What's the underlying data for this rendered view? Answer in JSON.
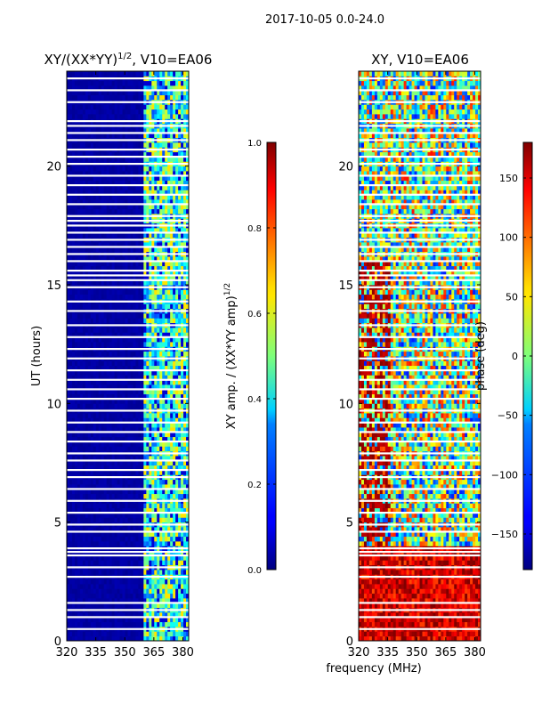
{
  "figure": {
    "suptitle": "2017-10-05 0.0-24.0",
    "shared_xlabel": "frequency (MHz)"
  },
  "chart_data": [
    {
      "type": "heatmap",
      "title_main": "XY/(XX*YY)",
      "title_exp": "1/2",
      "title_suffix": ", V10=EA06",
      "xlabel": "",
      "ylabel": "UT (hours)",
      "xlim": [
        320,
        383
      ],
      "ylim": [
        0,
        24
      ],
      "xticks": [
        320,
        335,
        350,
        365,
        380
      ],
      "yticks": [
        0,
        5,
        10,
        15,
        20
      ],
      "colorbar": {
        "label_main": "XY amp. / (XX*YY amp)",
        "label_exp": "1/2",
        "range": [
          0.0,
          1.0
        ],
        "ticks": [
          "0.0",
          "0.2",
          "0.4",
          "0.6",
          "0.8",
          "1.0"
        ],
        "colormap": "jet"
      },
      "description_values": {
        "background_level": 0.02,
        "rfi_band_MHz": [
          360,
          383
        ],
        "rfi_level_range": [
          0.2,
          0.6
        ]
      },
      "flagged_hours": [
        0.5,
        1.0,
        1.3,
        1.6,
        2.7,
        3.1,
        3.6,
        3.75,
        3.9,
        4.6,
        4.9,
        5.4,
        5.9,
        6.4,
        6.9,
        7.2,
        7.6,
        7.9,
        8.4,
        8.8,
        9.2,
        9.7,
        10.2,
        10.6,
        11.0,
        11.4,
        11.9,
        12.3,
        12.8,
        13.3,
        13.9,
        14.3,
        14.9,
        15.2,
        15.4,
        15.6,
        16.0,
        16.3,
        16.6,
        16.9,
        17.2,
        17.5,
        17.7,
        17.9,
        18.4,
        18.8,
        19.2,
        19.6,
        20.1,
        20.4,
        20.7,
        21.1,
        21.4,
        21.7,
        21.9,
        22.7,
        23.2,
        23.7
      ]
    },
    {
      "type": "heatmap",
      "title_main": "XY, V10=EA06",
      "title_exp": "",
      "title_suffix": "",
      "xlabel": "",
      "ylabel": "",
      "xlim": [
        320,
        383
      ],
      "ylim": [
        0,
        24
      ],
      "xticks": [
        320,
        335,
        350,
        365,
        380
      ],
      "yticks": [
        0,
        5,
        10,
        15,
        20
      ],
      "colorbar": {
        "label_main": "phase (deg)",
        "label_exp": "",
        "range": [
          -180,
          180
        ],
        "ticks": [
          "−150",
          "−100",
          "−50",
          "0",
          "50",
          "100",
          "150"
        ],
        "colormap": "jet"
      },
      "description_values": {
        "phase_range_deg": [
          -180,
          180
        ],
        "dominant_phase_low_hours": 150,
        "dominant_phase_mid_hours": 0
      },
      "flagged_hours": [
        0.5,
        1.0,
        1.3,
        1.6,
        2.7,
        3.1,
        3.6,
        3.75,
        3.9,
        4.6,
        4.9,
        5.4,
        5.9,
        6.4,
        6.9,
        7.2,
        7.6,
        7.9,
        8.4,
        8.8,
        9.2,
        9.7,
        10.2,
        10.6,
        11.0,
        11.4,
        11.9,
        12.3,
        12.8,
        13.3,
        13.9,
        14.3,
        14.9,
        15.2,
        15.4,
        15.6,
        16.0,
        16.3,
        16.6,
        16.9,
        17.2,
        17.5,
        17.7,
        17.9,
        18.4,
        18.8,
        19.2,
        19.6,
        20.1,
        20.4,
        20.7,
        21.1,
        21.4,
        21.7,
        21.9,
        22.7,
        23.2,
        23.7
      ]
    }
  ]
}
